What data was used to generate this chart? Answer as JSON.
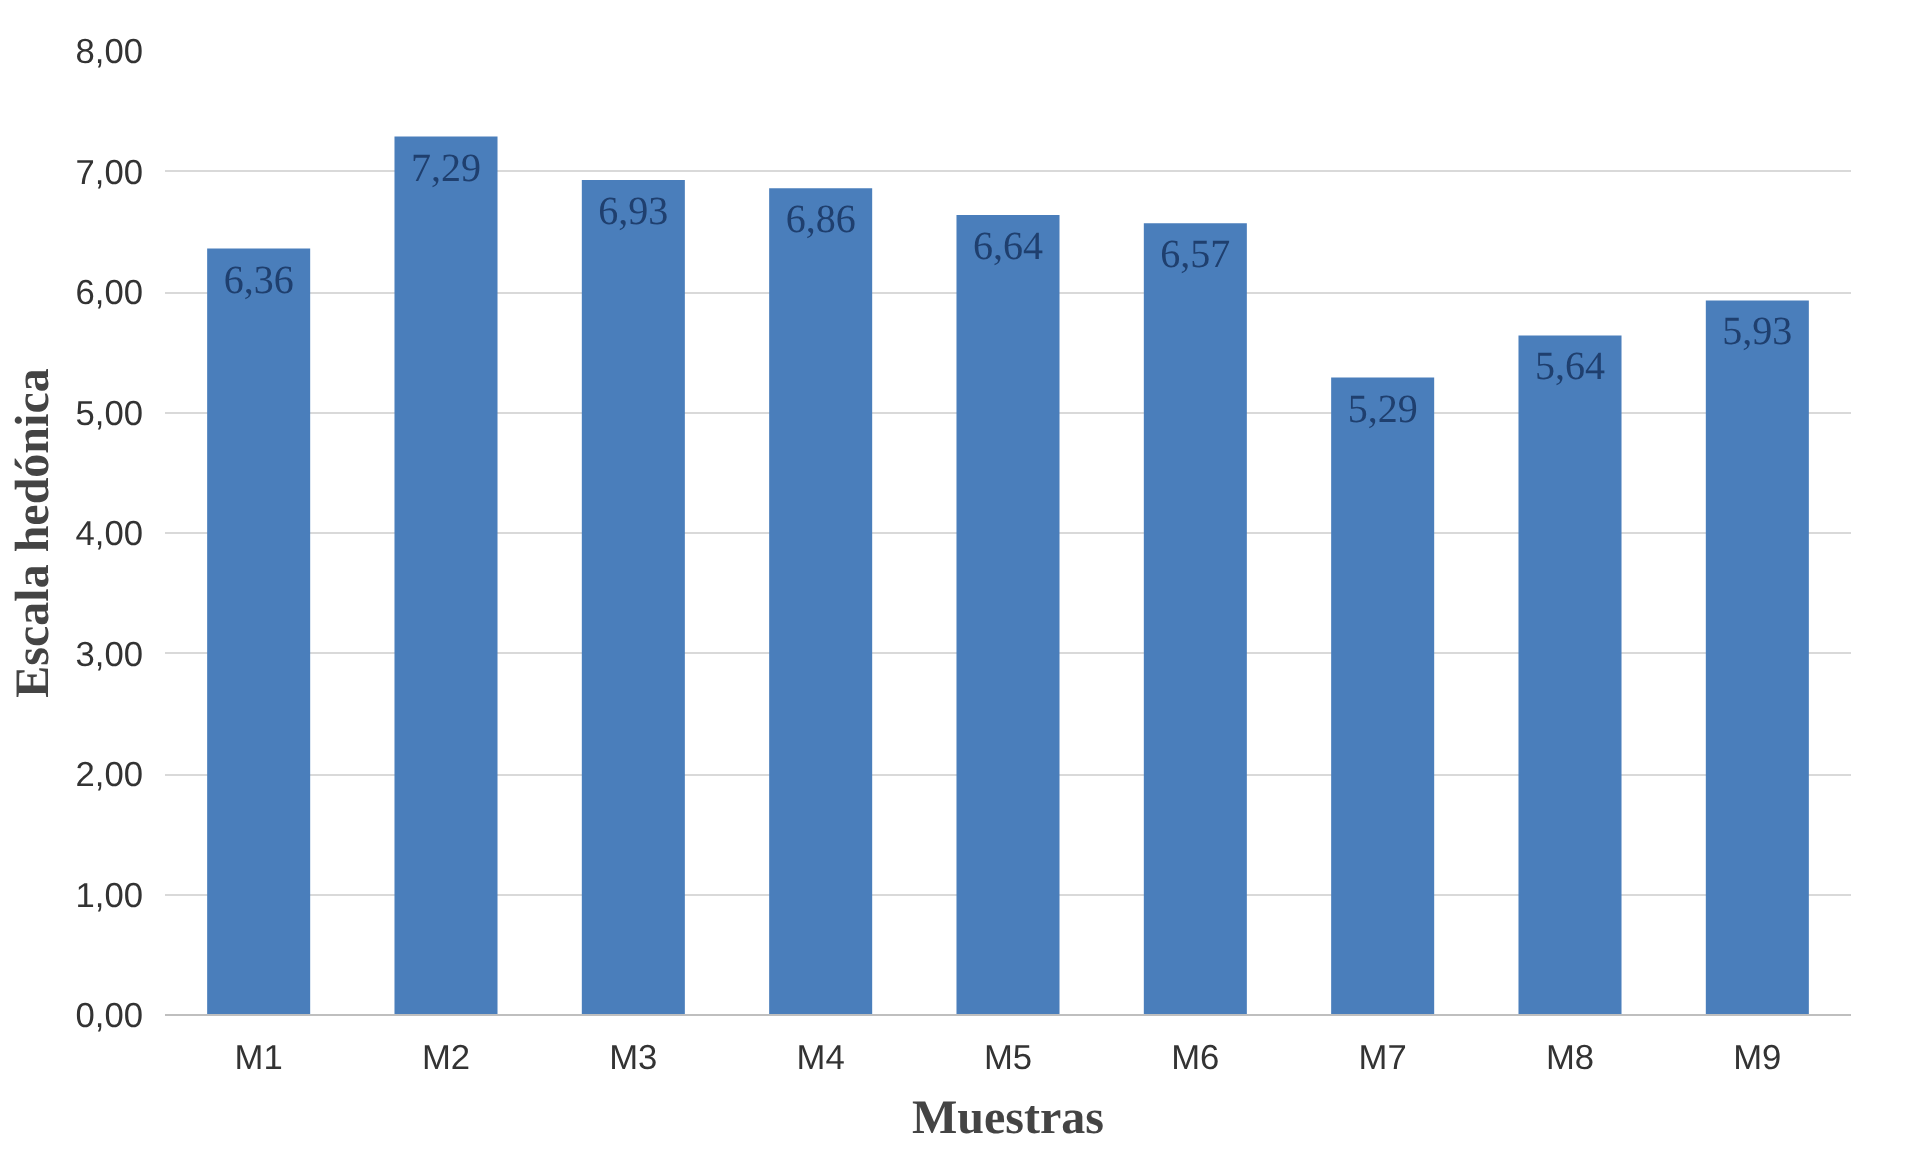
{
  "chart_data": {
    "type": "bar",
    "xlabel": "Muestras",
    "ylabel": "Escala hedónica",
    "categories": [
      "M1",
      "M2",
      "M3",
      "M4",
      "M5",
      "M6",
      "M7",
      "M8",
      "M9"
    ],
    "values": [
      6.36,
      7.29,
      6.93,
      6.86,
      6.64,
      6.57,
      5.29,
      5.64,
      5.93
    ],
    "value_labels": [
      "6,36",
      "7,29",
      "6,93",
      "6,86",
      "6,64",
      "6,57",
      "5,29",
      "5,64",
      "5,93"
    ],
    "color": "#4a7ebb",
    "ylim": [
      0,
      8
    ],
    "yticks": [
      {
        "value": 0,
        "label": "0,00"
      },
      {
        "value": 1,
        "label": "1,00"
      },
      {
        "value": 2,
        "label": "2,00"
      },
      {
        "value": 3,
        "label": "3,00"
      },
      {
        "value": 4,
        "label": "4,00"
      },
      {
        "value": 5,
        "label": "5,00"
      },
      {
        "value": 6,
        "label": "6,00"
      },
      {
        "value": 7,
        "label": "7,00"
      },
      {
        "value": 8,
        "label": "8,00"
      }
    ],
    "grid": "y"
  }
}
